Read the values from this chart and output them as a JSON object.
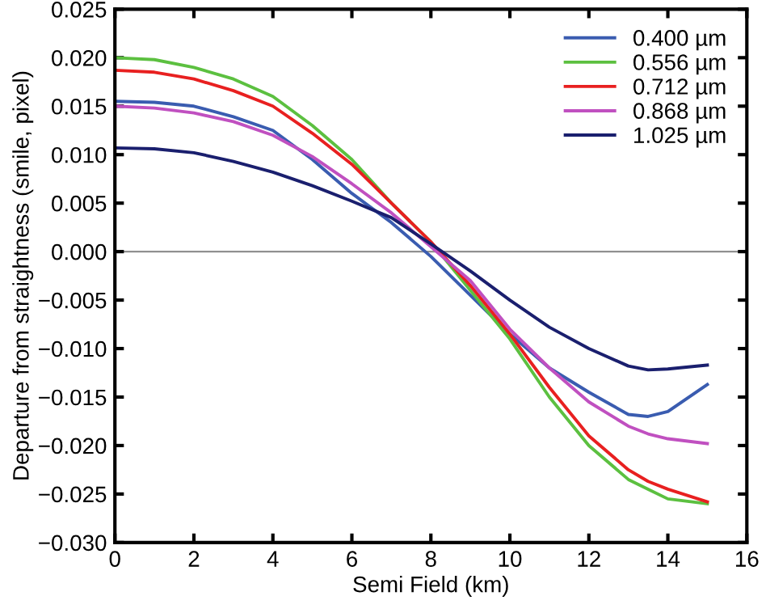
{
  "chart_data": {
    "type": "line",
    "xlabel": "Semi Field (km)",
    "ylabel": "Departure from straightness (smile, pixel)",
    "x": [
      0,
      1,
      2,
      3,
      4,
      5,
      6,
      7,
      8,
      9,
      10,
      11,
      12,
      13,
      13.5,
      14,
      15
    ],
    "series": [
      {
        "name": "0.400 µm",
        "color": "#3a5cb0",
        "values": [
          0.0155,
          0.0154,
          0.015,
          0.0139,
          0.0125,
          0.0095,
          0.006,
          0.003,
          -0.0005,
          -0.0045,
          -0.0085,
          -0.012,
          -0.0145,
          -0.0168,
          -0.017,
          -0.0165,
          -0.0137
        ]
      },
      {
        "name": "0.556 µm",
        "color": "#5cc040",
        "values": [
          0.02,
          0.0198,
          0.019,
          0.0178,
          0.016,
          0.013,
          0.0095,
          0.005,
          0.001,
          -0.004,
          -0.009,
          -0.015,
          -0.02,
          -0.0235,
          -0.0245,
          -0.0255,
          -0.026
        ]
      },
      {
        "name": "0.712 µm",
        "color": "#e82020",
        "values": [
          0.0187,
          0.0185,
          0.0178,
          0.0166,
          0.015,
          0.0122,
          0.009,
          0.005,
          0.001,
          -0.0035,
          -0.0085,
          -0.014,
          -0.019,
          -0.0225,
          -0.0237,
          -0.0245,
          -0.0258
        ]
      },
      {
        "name": "0.868 µm",
        "color": "#c050c0",
        "values": [
          0.015,
          0.0148,
          0.0143,
          0.0134,
          0.012,
          0.0098,
          0.007,
          0.004,
          0.0005,
          -0.003,
          -0.008,
          -0.012,
          -0.0155,
          -0.018,
          -0.0188,
          -0.0193,
          -0.0198
        ]
      },
      {
        "name": "1.025 µm",
        "color": "#1a1f6e",
        "values": [
          0.0107,
          0.0106,
          0.0102,
          0.0093,
          0.0082,
          0.0068,
          0.0052,
          0.0035,
          0.0008,
          -0.002,
          -0.005,
          -0.0078,
          -0.01,
          -0.0118,
          -0.0122,
          -0.0121,
          -0.0117
        ]
      }
    ],
    "xlim": [
      0,
      16
    ],
    "xticks": [
      0,
      2,
      4,
      6,
      8,
      10,
      12,
      14,
      16
    ],
    "ylim": [
      -0.03,
      0.025
    ],
    "yticks": [
      {
        "value": -0.03,
        "label": "−0.030"
      },
      {
        "value": -0.025,
        "label": "−0.025"
      },
      {
        "value": -0.02,
        "label": "−0.020"
      },
      {
        "value": -0.015,
        "label": "−0.015"
      },
      {
        "value": -0.01,
        "label": "−0.010"
      },
      {
        "value": -0.005,
        "label": "−0.005"
      },
      {
        "value": 0,
        "label": "0.000"
      },
      {
        "value": 0.005,
        "label": "0.005"
      },
      {
        "value": 0.01,
        "label": "0.010"
      },
      {
        "value": 0.015,
        "label": "0.015"
      },
      {
        "value": 0.02,
        "label": "0.020"
      },
      {
        "value": 0.025,
        "label": "0.025"
      }
    ],
    "ref_lines": [
      {
        "axis": "y",
        "value": 0,
        "color": "#909090"
      }
    ],
    "grid": false,
    "legend": "top right",
    "marker": "none",
    "line_style": "solid"
  }
}
